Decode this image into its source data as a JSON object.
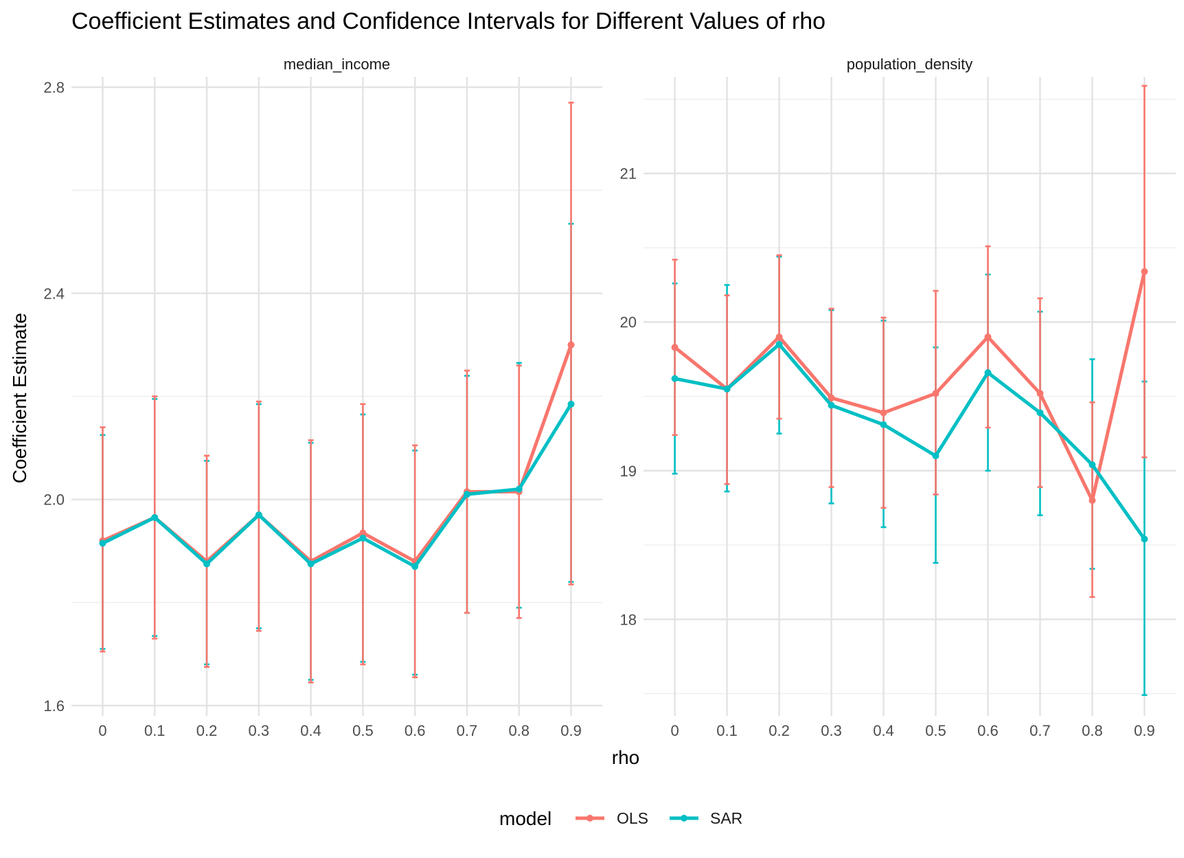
{
  "chart_data": {
    "type": "line",
    "title": "Coefficient Estimates and Confidence Intervals for Different Values of rho",
    "xlabel": "rho",
    "ylabel": "Coefficient Estimate",
    "x": [
      0,
      0.1,
      0.2,
      0.3,
      0.4,
      0.5,
      0.6,
      0.7,
      0.8,
      0.9
    ],
    "x_tick_labels": [
      "0",
      "0.1",
      "0.2",
      "0.3",
      "0.4",
      "0.5",
      "0.6",
      "0.7",
      "0.8",
      "0.9"
    ],
    "legend": {
      "title": "model",
      "position": "bottom",
      "entries": [
        {
          "name": "OLS",
          "color": "#F8766D"
        },
        {
          "name": "SAR",
          "color": "#00BFC4"
        }
      ]
    },
    "grid": true,
    "error_bars": true,
    "panels": [
      {
        "strip_label": "median_income",
        "ylim": [
          1.58,
          2.82
        ],
        "y_ticks": [
          1.6,
          2.0,
          2.4,
          2.8
        ],
        "y_tick_labels": [
          "1.6",
          "2.0",
          "2.4",
          "2.8"
        ],
        "y_minor": [
          1.8,
          2.2,
          2.6
        ],
        "series": [
          {
            "name": "OLS",
            "values": [
              1.92,
              1.965,
              1.88,
              1.97,
              1.88,
              1.935,
              1.88,
              2.015,
              2.015,
              2.3
            ],
            "lower": [
              1.705,
              1.73,
              1.675,
              1.745,
              1.645,
              1.68,
              1.655,
              1.78,
              1.77,
              1.835
            ],
            "upper": [
              2.14,
              2.2,
              2.085,
              2.19,
              2.115,
              2.185,
              2.105,
              2.25,
              2.26,
              2.77
            ]
          },
          {
            "name": "SAR",
            "values": [
              1.915,
              1.965,
              1.875,
              1.97,
              1.875,
              1.925,
              1.87,
              2.01,
              2.02,
              2.185
            ],
            "lower": [
              1.71,
              1.735,
              1.68,
              1.75,
              1.65,
              1.685,
              1.66,
              1.78,
              1.79,
              1.84
            ],
            "upper": [
              2.125,
              2.195,
              2.075,
              2.185,
              2.11,
              2.165,
              2.095,
              2.24,
              2.265,
              2.535
            ]
          }
        ]
      },
      {
        "strip_label": "population_density",
        "ylim": [
          17.35,
          21.65
        ],
        "y_ticks": [
          18,
          19,
          20,
          21
        ],
        "y_tick_labels": [
          "18",
          "19",
          "20",
          "21"
        ],
        "y_minor": [
          17.5,
          18.5,
          19.5,
          20.5,
          21.5
        ],
        "series": [
          {
            "name": "OLS",
            "values": [
              19.83,
              19.55,
              19.9,
              19.49,
              19.39,
              19.52,
              19.9,
              19.52,
              18.8,
              20.34
            ],
            "lower": [
              19.24,
              18.91,
              19.35,
              18.89,
              18.75,
              18.84,
              19.29,
              18.89,
              18.15,
              19.09
            ],
            "upper": [
              20.42,
              20.18,
              20.45,
              20.09,
              20.03,
              20.21,
              20.51,
              20.16,
              19.46,
              21.59
            ]
          },
          {
            "name": "SAR",
            "values": [
              19.62,
              19.55,
              19.85,
              19.44,
              19.31,
              19.1,
              19.66,
              19.39,
              19.04,
              18.54
            ],
            "lower": [
              18.98,
              18.86,
              19.25,
              18.78,
              18.62,
              18.38,
              19.0,
              18.7,
              18.34,
              17.49
            ],
            "upper": [
              20.26,
              20.25,
              20.44,
              20.08,
              20.01,
              19.83,
              20.32,
              20.07,
              19.75,
              19.6
            ]
          }
        ]
      }
    ]
  }
}
